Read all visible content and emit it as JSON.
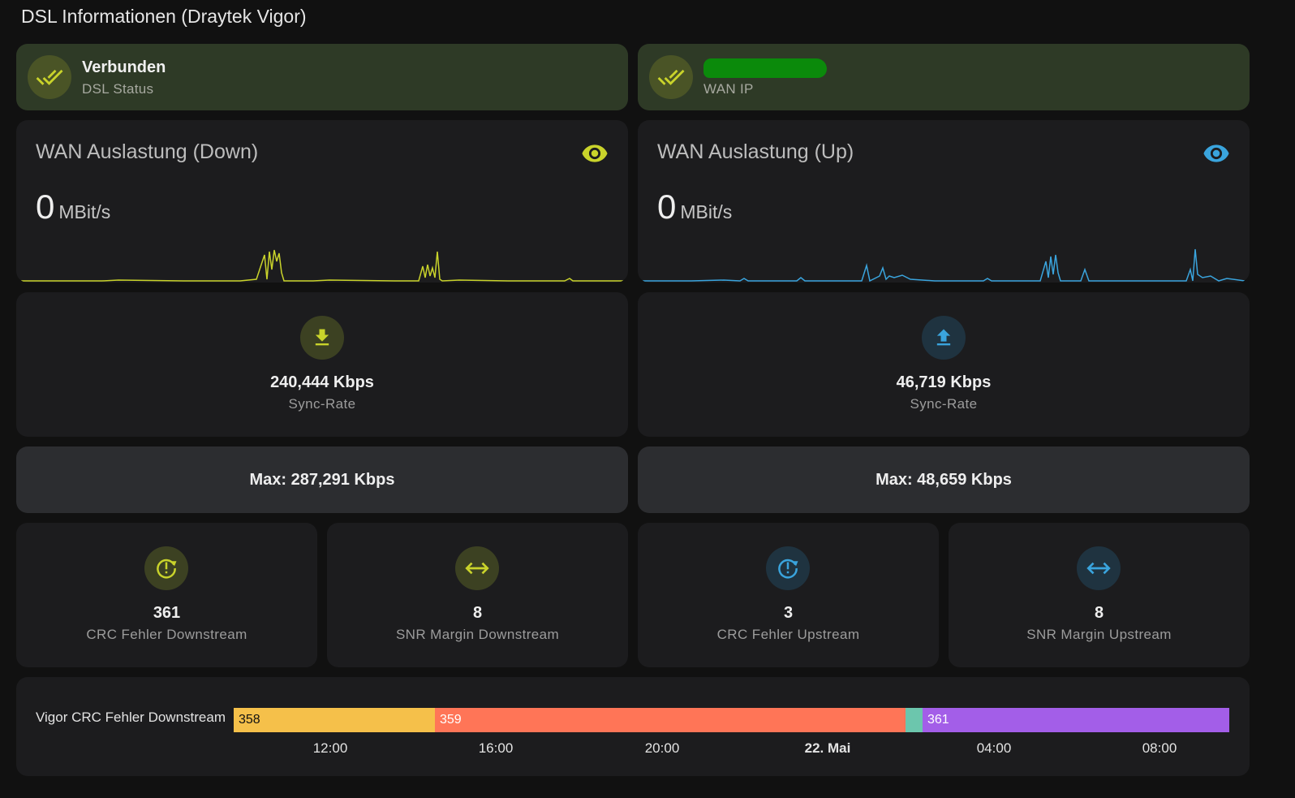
{
  "page": {
    "title": "DSL Informationen (Draytek Vigor)"
  },
  "colors": {
    "accent_down": "#c9d32b",
    "accent_up": "#3aa4dd",
    "tile_bg": "#2e3a26",
    "card_bg": "#1c1c1e"
  },
  "status_tiles": [
    {
      "primary": "Verbunden",
      "secondary": "DSL Status",
      "icon": "check-all-icon"
    },
    {
      "primary": "",
      "secondary": "WAN IP",
      "icon": "check-all-icon"
    }
  ],
  "graphs": [
    {
      "name": "WAN Auslastung (Down)",
      "value": "0",
      "unit": "MBit/s",
      "icon": "eye-icon",
      "color": "#c9d32b"
    },
    {
      "name": "WAN Auslastung (Up)",
      "value": "0",
      "unit": "MBit/s",
      "icon": "eye-icon",
      "color": "#3aa4dd"
    }
  ],
  "sync": [
    {
      "value": "240,444 Kbps",
      "name": "Sync-Rate",
      "icon": "download-icon"
    },
    {
      "value": "46,719 Kbps",
      "name": "Sync-Rate",
      "icon": "upload-icon"
    }
  ],
  "max": [
    {
      "label": "Max: 287,291 Kbps"
    },
    {
      "label": "Max: 48,659 Kbps"
    }
  ],
  "stats": [
    {
      "value": "361",
      "name": "CRC Fehler Downstream",
      "icon": "alert-clock-icon"
    },
    {
      "value": "8",
      "name": "SNR Margin Downstream",
      "icon": "arrow-left-right-icon"
    },
    {
      "value": "3",
      "name": "CRC Fehler Upstream",
      "icon": "alert-clock-icon"
    },
    {
      "value": "8",
      "name": "SNR Margin Upstream",
      "icon": "arrow-left-right-icon"
    }
  ],
  "timeline": {
    "label": "Vigor CRC Fehler Downstream",
    "segments": [
      {
        "label": "358",
        "color": "#f5c04a"
      },
      {
        "label": "359",
        "color": "#ff7557"
      },
      {
        "label": "",
        "color": "#6cc6ad"
      },
      {
        "label": "361",
        "color": "#a35ee8"
      }
    ],
    "ticks": [
      "12:00",
      "16:00",
      "20:00",
      "22. Mai",
      "04:00",
      "08:00"
    ]
  }
}
